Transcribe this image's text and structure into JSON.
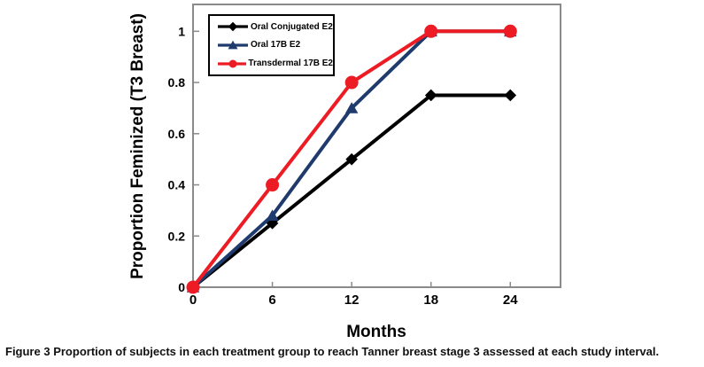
{
  "figure": {
    "caption_label": "Figure 3",
    "caption_text": "Proportion of subjects in each treatment group to reach Tanner breast stage 3 assessed at each study interval."
  },
  "colors": {
    "frame": "#8a8a8a",
    "tick_text": "#000000",
    "background": "#ffffff",
    "legend_border": "#000000"
  },
  "chart_data": {
    "type": "line",
    "title": "",
    "xlabel": "Months",
    "ylabel": "Proportion Feminized (T3 Breast)",
    "x": [
      0,
      6,
      12,
      18,
      24
    ],
    "xlim": [
      0,
      27.8
    ],
    "ylim": [
      0,
      1.105
    ],
    "xticks": [
      0,
      6,
      12,
      18,
      24
    ],
    "yticks": [
      0,
      0.2,
      0.4,
      0.6,
      0.8,
      1
    ],
    "xticklabels": [
      "0",
      "6",
      "12",
      "18",
      "24"
    ],
    "yticklabels": [
      "0",
      "0.2",
      "0.4",
      "0.6",
      "0.8",
      "1"
    ],
    "grid": false,
    "legend_position": "top-left-inside",
    "series": [
      {
        "name": "Oral Conjugated E2",
        "color": "#000000",
        "marker": "diamond",
        "values": [
          0,
          0.25,
          0.5,
          0.75,
          0.75
        ]
      },
      {
        "name": "Oral 17B E2",
        "color": "#1f3a6d",
        "marker": "triangle",
        "values": [
          0,
          0.28,
          0.7,
          1.0,
          1.0
        ]
      },
      {
        "name": "Transdermal 17B E2",
        "color": "#ed1c24",
        "marker": "circle",
        "values": [
          0,
          0.4,
          0.8,
          1.0,
          1.0
        ]
      }
    ]
  }
}
